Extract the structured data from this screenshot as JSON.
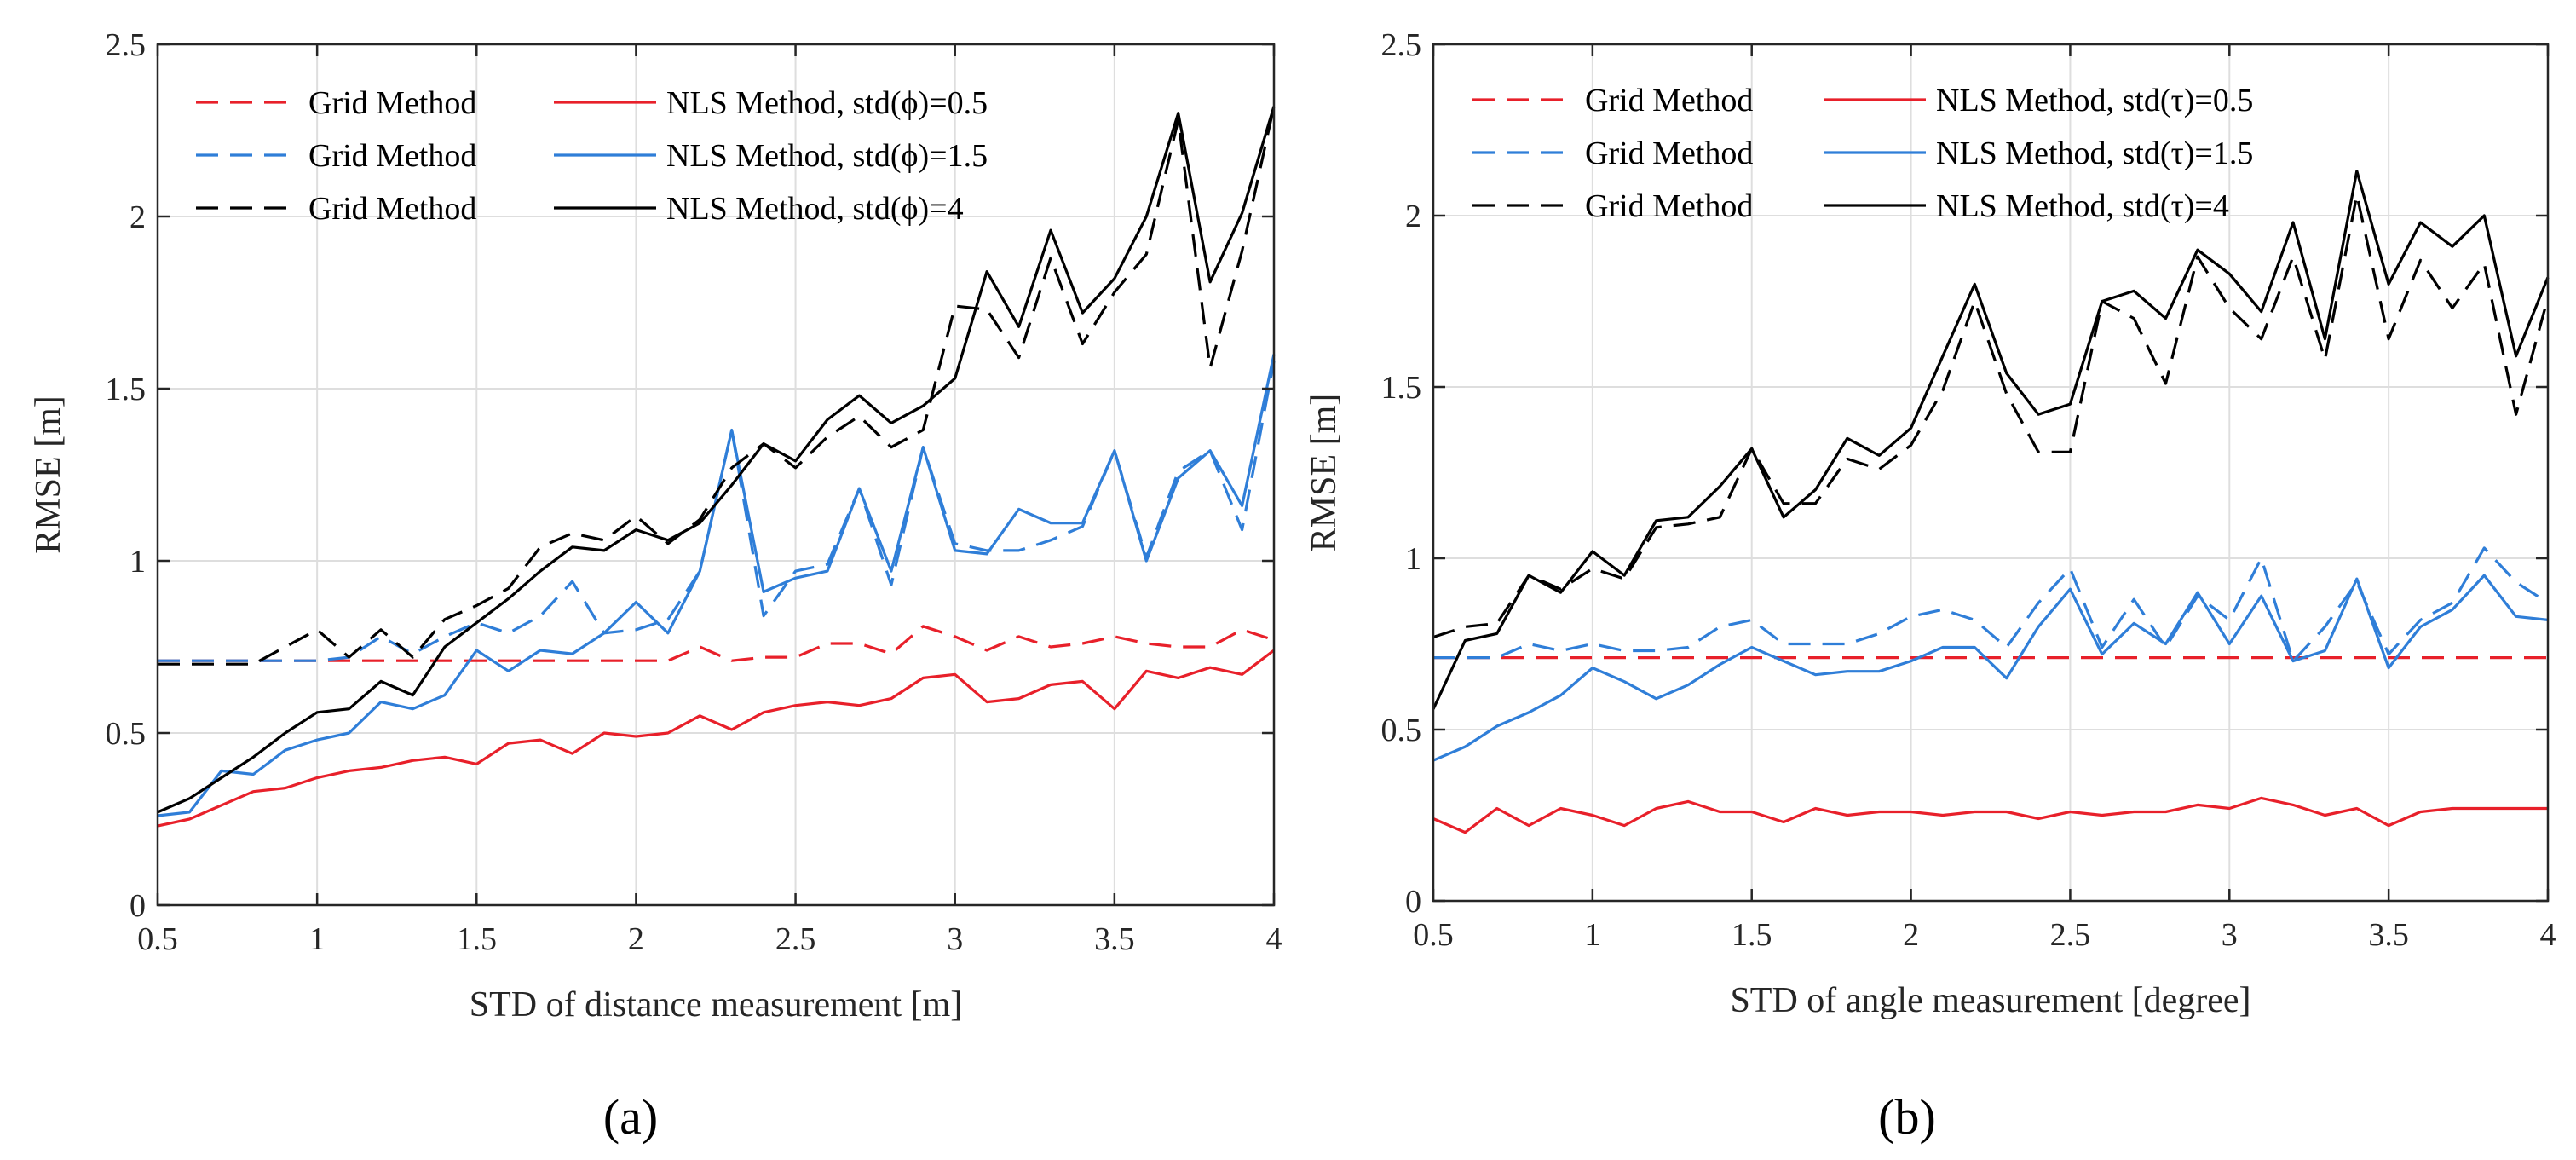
{
  "chart_data": [
    {
      "type": "line",
      "panel_caption": "(a)",
      "title": "",
      "xlabel": "STD of distance measurement [m]",
      "ylabel": "RMSE [m]",
      "xlim": [
        0.5,
        4
      ],
      "ylim": [
        0,
        2.5
      ],
      "xticks": [
        0.5,
        1,
        1.5,
        2,
        2.5,
        3,
        3.5,
        4
      ],
      "yticks": [
        0,
        0.5,
        1,
        1.5,
        2,
        2.5
      ],
      "xtick_labels": [
        "0.5",
        "1",
        "1.5",
        "2",
        "2.5",
        "3",
        "3.5",
        "4"
      ],
      "ytick_labels": [
        "0",
        "0.5",
        "1",
        "1.5",
        "2",
        "2.5"
      ],
      "grid": true,
      "legend_position": "top-left",
      "x": [
        0.5,
        0.6,
        0.7,
        0.8,
        0.9,
        1.0,
        1.1,
        1.2,
        1.3,
        1.4,
        1.5,
        1.6,
        1.7,
        1.8,
        1.9,
        2.0,
        2.1,
        2.2,
        2.3,
        2.4,
        2.5,
        2.6,
        2.7,
        2.8,
        2.9,
        3.0,
        3.1,
        3.2,
        3.3,
        3.4,
        3.5,
        3.6,
        3.7,
        3.8,
        3.9,
        4.0
      ],
      "series": [
        {
          "name": "Grid Method",
          "color": "#e8202a",
          "dash": true,
          "values": [
            0.71,
            0.71,
            0.71,
            0.71,
            0.71,
            0.71,
            0.71,
            0.71,
            0.71,
            0.71,
            0.71,
            0.71,
            0.71,
            0.71,
            0.71,
            0.71,
            0.71,
            0.75,
            0.71,
            0.72,
            0.72,
            0.76,
            0.76,
            0.73,
            0.81,
            0.78,
            0.74,
            0.78,
            0.75,
            0.76,
            0.78,
            0.76,
            0.75,
            0.75,
            0.8,
            0.77
          ]
        },
        {
          "name": "NLS Method, std(ϕ)=0.5",
          "color": "#e8202a",
          "dash": false,
          "values": [
            0.23,
            0.25,
            0.29,
            0.33,
            0.34,
            0.37,
            0.39,
            0.4,
            0.42,
            0.43,
            0.41,
            0.47,
            0.48,
            0.44,
            0.5,
            0.49,
            0.5,
            0.55,
            0.51,
            0.56,
            0.58,
            0.59,
            0.58,
            0.6,
            0.66,
            0.67,
            0.59,
            0.6,
            0.64,
            0.65,
            0.57,
            0.68,
            0.66,
            0.69,
            0.67,
            0.74
          ]
        },
        {
          "name": "Grid Method",
          "color": "#2f7ed8",
          "dash": true,
          "values": [
            0.71,
            0.71,
            0.71,
            0.71,
            0.71,
            0.71,
            0.72,
            0.78,
            0.73,
            0.78,
            0.82,
            0.79,
            0.84,
            0.94,
            0.79,
            0.8,
            0.83,
            0.97,
            1.38,
            0.84,
            0.97,
            0.99,
            1.21,
            0.93,
            1.33,
            1.05,
            1.03,
            1.03,
            1.06,
            1.1,
            1.32,
            1.01,
            1.26,
            1.32,
            1.09,
            1.58
          ]
        },
        {
          "name": "NLS Method, std(ϕ)=1.5",
          "color": "#2f7ed8",
          "dash": false,
          "values": [
            0.26,
            0.27,
            0.39,
            0.38,
            0.45,
            0.48,
            0.5,
            0.59,
            0.57,
            0.61,
            0.74,
            0.68,
            0.74,
            0.73,
            0.79,
            0.88,
            0.79,
            0.97,
            1.38,
            0.91,
            0.95,
            0.97,
            1.21,
            0.97,
            1.33,
            1.03,
            1.02,
            1.15,
            1.11,
            1.11,
            1.32,
            1.0,
            1.24,
            1.32,
            1.16,
            1.6
          ]
        },
        {
          "name": "Grid Method",
          "color": "#000000",
          "dash": true,
          "values": [
            0.7,
            0.7,
            0.7,
            0.7,
            0.75,
            0.8,
            0.72,
            0.8,
            0.72,
            0.83,
            0.87,
            0.92,
            1.04,
            1.08,
            1.06,
            1.13,
            1.05,
            1.12,
            1.27,
            1.34,
            1.27,
            1.36,
            1.42,
            1.33,
            1.38,
            1.74,
            1.73,
            1.59,
            1.88,
            1.63,
            1.78,
            1.89,
            2.28,
            1.56,
            1.9,
            2.32
          ]
        },
        {
          "name": "NLS Method, std(ϕ)=4",
          "color": "#000000",
          "dash": false,
          "values": [
            0.27,
            0.31,
            0.37,
            0.43,
            0.5,
            0.56,
            0.57,
            0.65,
            0.61,
            0.75,
            0.82,
            0.89,
            0.97,
            1.04,
            1.03,
            1.09,
            1.06,
            1.11,
            1.22,
            1.34,
            1.29,
            1.41,
            1.48,
            1.4,
            1.45,
            1.53,
            1.84,
            1.68,
            1.96,
            1.72,
            1.82,
            2.0,
            2.3,
            1.81,
            2.01,
            2.32
          ]
        }
      ]
    },
    {
      "type": "line",
      "panel_caption": "(b)",
      "title": "",
      "xlabel": "STD of angle measurement [degree]",
      "ylabel": "RMSE [m]",
      "xlim": [
        0.5,
        4
      ],
      "ylim": [
        0,
        2.5
      ],
      "xticks": [
        0.5,
        1,
        1.5,
        2,
        2.5,
        3,
        3.5,
        4
      ],
      "yticks": [
        0,
        0.5,
        1,
        1.5,
        2,
        2.5
      ],
      "xtick_labels": [
        "0.5",
        "1",
        "1.5",
        "2",
        "2.5",
        "3",
        "3.5",
        "4"
      ],
      "ytick_labels": [
        "0",
        "0.5",
        "1",
        "1.5",
        "2",
        "2.5"
      ],
      "grid": true,
      "legend_position": "top-left",
      "x": [
        0.5,
        0.6,
        0.7,
        0.8,
        0.9,
        1.0,
        1.1,
        1.2,
        1.3,
        1.4,
        1.5,
        1.6,
        1.7,
        1.8,
        1.9,
        2.0,
        2.1,
        2.2,
        2.3,
        2.4,
        2.5,
        2.6,
        2.7,
        2.8,
        2.9,
        3.0,
        3.1,
        3.2,
        3.3,
        3.4,
        3.5,
        3.6,
        3.7,
        3.8,
        3.9,
        4.0
      ],
      "series": [
        {
          "name": "Grid Method",
          "color": "#e8202a",
          "dash": true,
          "values": [
            0.71,
            0.71,
            0.71,
            0.71,
            0.71,
            0.71,
            0.71,
            0.71,
            0.71,
            0.71,
            0.71,
            0.71,
            0.71,
            0.71,
            0.71,
            0.71,
            0.71,
            0.71,
            0.71,
            0.71,
            0.71,
            0.71,
            0.71,
            0.71,
            0.71,
            0.71,
            0.71,
            0.71,
            0.71,
            0.71,
            0.71,
            0.71,
            0.71,
            0.71,
            0.71,
            0.71
          ]
        },
        {
          "name": "NLS Method, std(τ)=0.5",
          "color": "#e8202a",
          "dash": false,
          "values": [
            0.24,
            0.2,
            0.27,
            0.22,
            0.27,
            0.25,
            0.22,
            0.27,
            0.29,
            0.26,
            0.26,
            0.23,
            0.27,
            0.25,
            0.26,
            0.26,
            0.25,
            0.26,
            0.26,
            0.24,
            0.26,
            0.25,
            0.26,
            0.26,
            0.28,
            0.27,
            0.3,
            0.28,
            0.25,
            0.27,
            0.22,
            0.26,
            0.27,
            0.27,
            0.27,
            0.27
          ]
        },
        {
          "name": "Grid Method",
          "color": "#2f7ed8",
          "dash": true,
          "values": [
            0.71,
            0.71,
            0.71,
            0.75,
            0.73,
            0.75,
            0.73,
            0.73,
            0.74,
            0.8,
            0.82,
            0.75,
            0.75,
            0.75,
            0.78,
            0.83,
            0.85,
            0.82,
            0.74,
            0.87,
            0.97,
            0.74,
            0.88,
            0.74,
            0.89,
            0.82,
            1.0,
            0.7,
            0.8,
            0.93,
            0.72,
            0.82,
            0.87,
            1.03,
            0.93,
            0.87
          ]
        },
        {
          "name": "NLS Method, std(τ)=1.5",
          "color": "#2f7ed8",
          "dash": false,
          "values": [
            0.41,
            0.45,
            0.51,
            0.55,
            0.6,
            0.68,
            0.64,
            0.59,
            0.63,
            0.69,
            0.74,
            0.7,
            0.66,
            0.67,
            0.67,
            0.7,
            0.74,
            0.74,
            0.65,
            0.8,
            0.91,
            0.72,
            0.81,
            0.75,
            0.9,
            0.75,
            0.89,
            0.7,
            0.73,
            0.94,
            0.68,
            0.8,
            0.85,
            0.95,
            0.83,
            0.82
          ]
        },
        {
          "name": "Grid Method",
          "color": "#000000",
          "dash": true,
          "values": [
            0.77,
            0.8,
            0.81,
            0.95,
            0.91,
            0.97,
            0.94,
            1.09,
            1.1,
            1.12,
            1.32,
            1.16,
            1.16,
            1.29,
            1.26,
            1.33,
            1.49,
            1.75,
            1.48,
            1.31,
            1.31,
            1.75,
            1.7,
            1.51,
            1.88,
            1.73,
            1.64,
            1.88,
            1.58,
            2.06,
            1.64,
            1.87,
            1.73,
            1.86,
            1.42,
            1.76
          ]
        },
        {
          "name": "NLS Method, std(τ)=4",
          "color": "#000000",
          "dash": false,
          "values": [
            0.56,
            0.76,
            0.78,
            0.95,
            0.9,
            1.02,
            0.95,
            1.11,
            1.12,
            1.21,
            1.32,
            1.12,
            1.2,
            1.35,
            1.3,
            1.38,
            1.59,
            1.8,
            1.54,
            1.42,
            1.45,
            1.75,
            1.78,
            1.7,
            1.9,
            1.83,
            1.72,
            1.98,
            1.64,
            2.13,
            1.8,
            1.98,
            1.91,
            2.0,
            1.59,
            1.82
          ]
        }
      ]
    }
  ]
}
